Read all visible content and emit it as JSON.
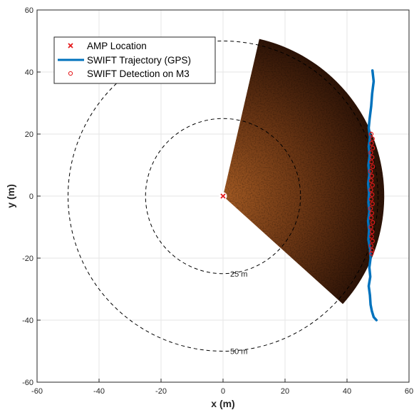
{
  "chart_data": {
    "type": "scatter",
    "title": "",
    "xlabel": "x (m)",
    "ylabel": "y (m)",
    "xlim": [
      -60,
      60
    ],
    "ylim": [
      -60,
      60
    ],
    "xticks": [
      -60,
      -40,
      -20,
      0,
      20,
      40,
      60
    ],
    "yticks": [
      -60,
      -40,
      -20,
      0,
      20,
      40,
      60
    ],
    "grid": true,
    "legend_position": "top-left",
    "range_rings": [
      {
        "radius": 25,
        "label": "25 m"
      },
      {
        "radius": 50,
        "label": "50 m"
      }
    ],
    "sonar_sector": {
      "origin": [
        0,
        0
      ],
      "radius_min": 1,
      "radius_max": 52,
      "bearing_start_deg": 13,
      "bearing_end_deg": 132,
      "note": "bearing measured clockwise from +y axis"
    },
    "series": [
      {
        "name": "AMP Location",
        "marker": "x",
        "color": "#e41a1c",
        "points": [
          [
            0,
            0
          ]
        ]
      },
      {
        "name": "SWIFT Trajectory (GPS)",
        "marker": "line",
        "color": "#0072bd",
        "points": [
          [
            48.2,
            40.5
          ],
          [
            48.6,
            37
          ],
          [
            48.1,
            33
          ],
          [
            47.8,
            29
          ],
          [
            47.3,
            25
          ],
          [
            47.0,
            22
          ],
          [
            47.4,
            19
          ],
          [
            47.0,
            16
          ],
          [
            47.3,
            13
          ],
          [
            46.9,
            10
          ],
          [
            47.2,
            7
          ],
          [
            46.8,
            4
          ],
          [
            47.1,
            1
          ],
          [
            46.9,
            -2
          ],
          [
            47.2,
            -5
          ],
          [
            46.8,
            -8
          ],
          [
            47.1,
            -11
          ],
          [
            46.9,
            -14
          ],
          [
            47.4,
            -17
          ],
          [
            47.6,
            -20
          ],
          [
            47.2,
            -23
          ],
          [
            47.5,
            -26
          ],
          [
            47.0,
            -29
          ],
          [
            47.4,
            -32
          ],
          [
            47.6,
            -35
          ],
          [
            48.0,
            -37
          ],
          [
            48.6,
            -39
          ],
          [
            49.5,
            -40
          ]
        ]
      },
      {
        "name": "SWIFT Detection on M3",
        "marker": "o",
        "color": "#e41a1c",
        "points": [
          [
            47.8,
            20
          ],
          [
            48.2,
            18.5
          ],
          [
            47.9,
            17
          ],
          [
            48.3,
            15.5
          ],
          [
            47.7,
            14
          ],
          [
            48.1,
            12.5
          ],
          [
            47.9,
            11
          ],
          [
            48.3,
            9.5
          ],
          [
            47.6,
            8
          ],
          [
            48.0,
            6.5
          ],
          [
            47.8,
            5
          ],
          [
            48.2,
            3.5
          ],
          [
            47.7,
            2
          ],
          [
            48.1,
            0.5
          ],
          [
            47.8,
            -1
          ],
          [
            48.2,
            -2.5
          ],
          [
            47.6,
            -4
          ],
          [
            48.0,
            -5.5
          ],
          [
            47.8,
            -7
          ],
          [
            48.3,
            -8.5
          ],
          [
            47.7,
            -10
          ],
          [
            48.1,
            -11.5
          ],
          [
            47.9,
            -13
          ],
          [
            48.2,
            -14.5
          ],
          [
            47.8,
            -16
          ],
          [
            48.1,
            -17.5
          ],
          [
            47.9,
            -18.5
          ]
        ]
      }
    ]
  },
  "colors": {
    "sector_dark": "#2b1206",
    "sector_mid": "#6b3614",
    "sector_bright": "#a35a23",
    "grid": "#e6e6e6",
    "axis": "#262626"
  }
}
